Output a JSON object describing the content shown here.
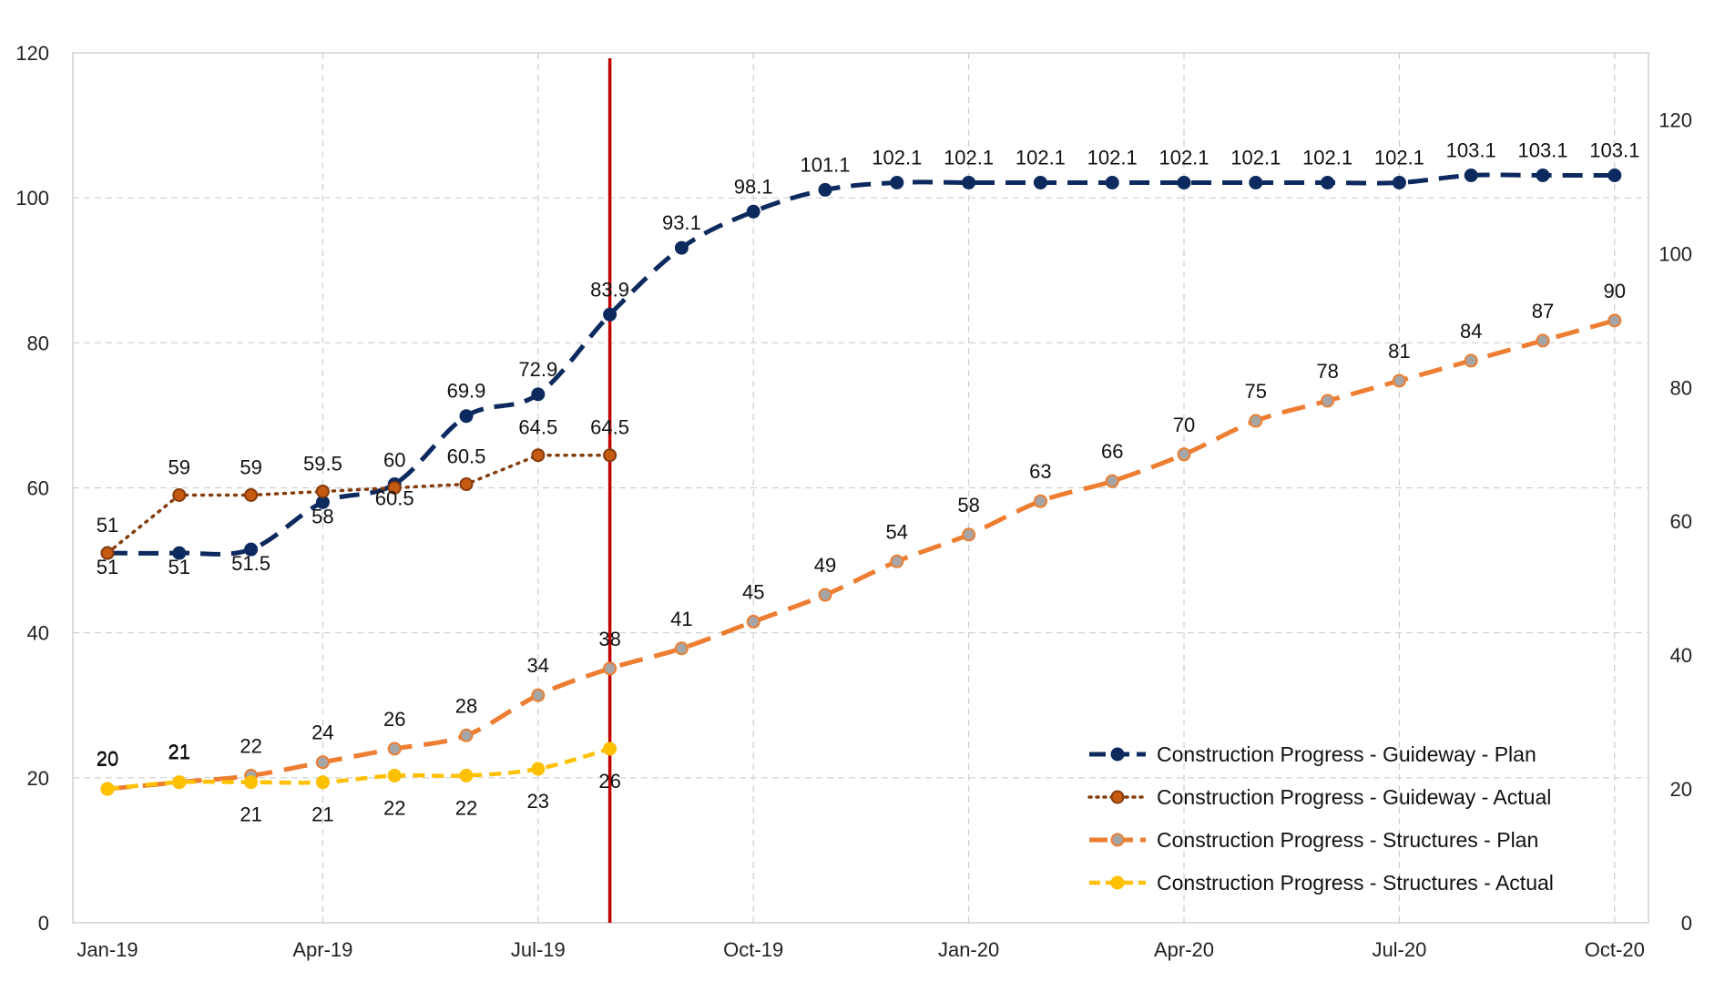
{
  "chart_data": {
    "type": "line",
    "title": "",
    "xlabel": "",
    "ylabel": "",
    "ylim_left": [
      0,
      120
    ],
    "ylim_right": [
      0,
      130
    ],
    "grid": true,
    "legend_position": "bottom-right",
    "x_ticks": [
      "Jan-19",
      "Apr-19",
      "Jul-19",
      "Oct-19",
      "Jan-20",
      "Apr-20",
      "Jul-20",
      "Oct-20"
    ],
    "y_ticks_left": [
      "0",
      "20",
      "40",
      "60",
      "80",
      "100",
      "120"
    ],
    "y_ticks_right": [
      "0",
      "20",
      "40",
      "60",
      "80",
      "100",
      "120"
    ],
    "months": [
      "Jan-19",
      "Feb-19",
      "Mar-19",
      "Apr-19",
      "May-19",
      "Jun-19",
      "Jul-19",
      "Aug-19",
      "Sep-19",
      "Oct-19",
      "Nov-19",
      "Dec-19",
      "Jan-20",
      "Feb-20",
      "Mar-20",
      "Apr-20",
      "May-20",
      "Jun-20",
      "Jul-20",
      "Aug-20",
      "Sep-20",
      "Oct-20"
    ],
    "status_marker": {
      "x": "Aug-19",
      "color": "#C00000"
    },
    "series": [
      {
        "name": "Construction Progress - Guideway - Plan",
        "axis": "left",
        "color": "#0D2A5E",
        "style": "dashed",
        "values": [
          51,
          51,
          51.5,
          58,
          60.5,
          69.9,
          72.9,
          83.9,
          93.1,
          98.1,
          101.1,
          102.1,
          102.1,
          102.1,
          102.1,
          102.1,
          102.1,
          102.1,
          102.1,
          103.1,
          103.1,
          103.1
        ],
        "labels": [
          "51",
          "51",
          "51.5",
          "58",
          "60.5",
          "69.9",
          "72.9",
          "83.9",
          "93.1",
          "98.1",
          "101.1",
          "102.1",
          "102.1",
          "102.1",
          "102.1",
          "102.1",
          "102.1",
          "102.1",
          "102.1",
          "103.1",
          "103.1",
          "103.1"
        ]
      },
      {
        "name": "Construction Progress - Guideway - Actual",
        "axis": "left",
        "color": "#843C0C",
        "style": "dotted",
        "values": [
          51,
          59,
          59,
          59.5,
          60,
          60.5,
          64.5,
          64.5
        ],
        "labels": [
          "51",
          "59",
          "59",
          "59.5",
          "60",
          "60.5",
          "64.5",
          "64.5"
        ]
      },
      {
        "name": "Construction Progress - Structures - Plan",
        "axis": "right",
        "color": "#ED7D31",
        "style": "dashed",
        "values": [
          20,
          21,
          22,
          24,
          26,
          28,
          34,
          38,
          41,
          45,
          49,
          54,
          58,
          63,
          66,
          70,
          75,
          78,
          81,
          84,
          87,
          90
        ],
        "labels": [
          "20",
          "21",
          "22",
          "24",
          "26",
          "28",
          "34",
          "38",
          "41",
          "45",
          "49",
          "54",
          "58",
          "63",
          "66",
          "70",
          "75",
          "78",
          "81",
          "84",
          "87",
          "90"
        ]
      },
      {
        "name": "Construction Progress - Structures - Actual",
        "axis": "right",
        "color": "#FFC000",
        "style": "dashed",
        "values": [
          20,
          21,
          21,
          21,
          22,
          22,
          23,
          26
        ],
        "labels": [
          "20",
          "21",
          "21",
          "21",
          "22",
          "22",
          "23",
          "26"
        ]
      }
    ]
  }
}
